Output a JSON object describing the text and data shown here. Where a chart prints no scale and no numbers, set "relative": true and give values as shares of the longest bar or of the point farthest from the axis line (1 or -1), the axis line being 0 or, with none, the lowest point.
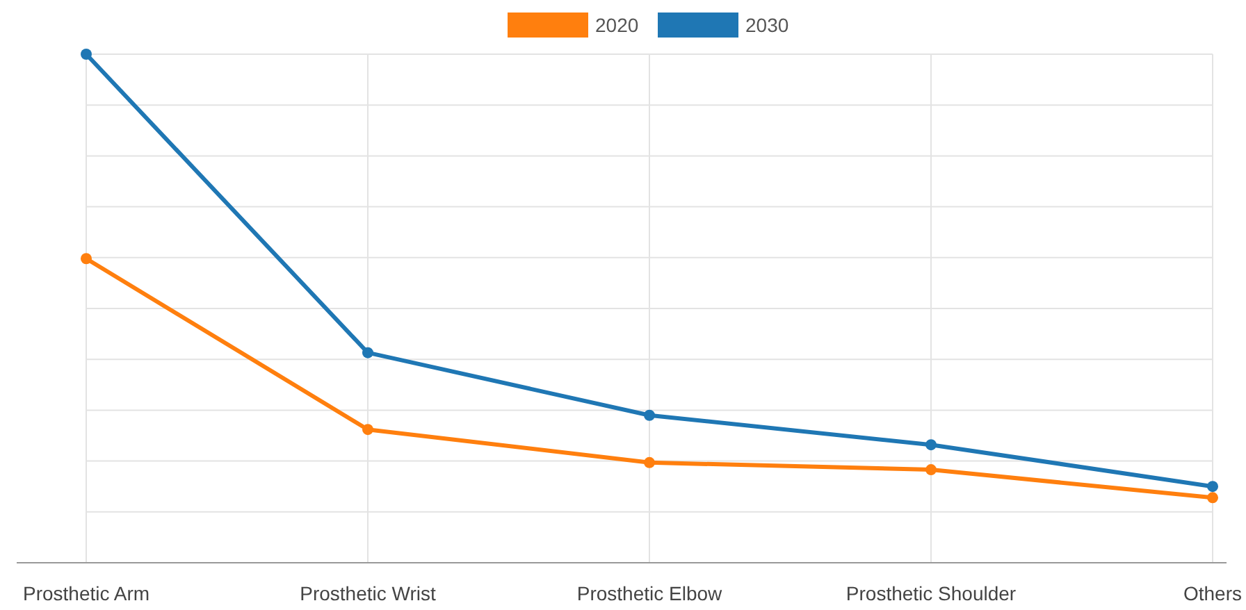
{
  "chart_data": {
    "type": "line",
    "relative": true,
    "categories": [
      "Prosthetic Arm",
      "Prosthetic Wrist",
      "Prosthetic Elbow",
      "Prosthetic Shoulder",
      "Others"
    ],
    "series": [
      {
        "name": "2020",
        "color": "#ff7f0e",
        "values": [
          0.598,
          0.262,
          0.197,
          0.183,
          0.128
        ]
      },
      {
        "name": "2030",
        "color": "#1f77b4",
        "values": [
          1,
          0.413,
          0.29,
          0.232,
          0.15
        ]
      }
    ],
    "grid": true,
    "legend": "top",
    "marker": "circle",
    "line_style": "solid"
  }
}
